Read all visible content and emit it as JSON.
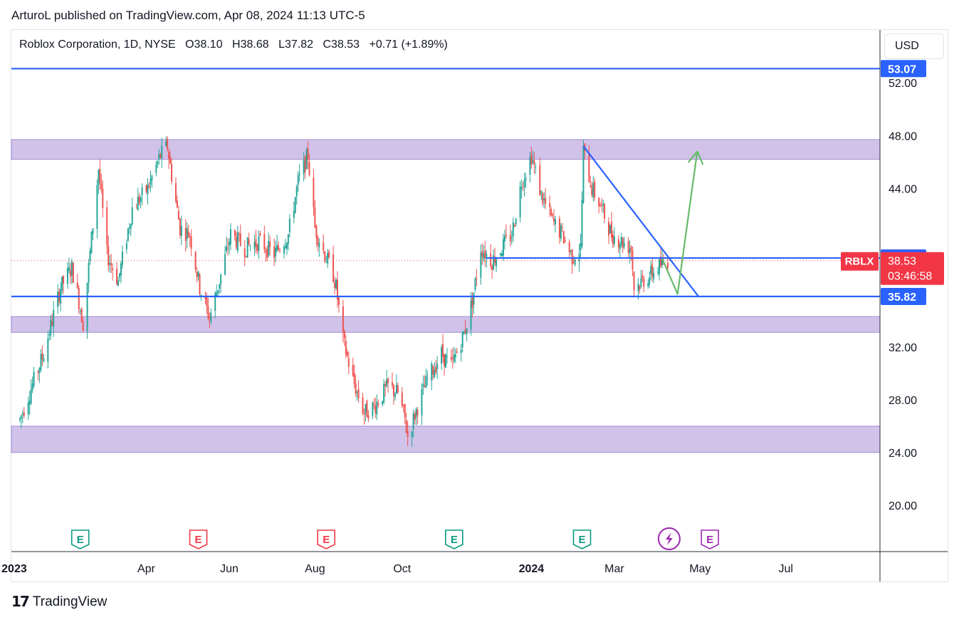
{
  "publisher_line": "ArturoL published on TradingView.com, Apr 08, 2024 11:13 UTC-5",
  "header": {
    "name": "Roblox Corporation, 1D, NYSE",
    "open": "O38.10",
    "high": "H38.68",
    "low": "L37.82",
    "close": "C38.53",
    "change": "+0.71 (+1.89%)"
  },
  "currency_button": "USD",
  "footer_brand": "TradingView",
  "colors": {
    "up": "#26a69a",
    "down": "#ef5350",
    "zone": "#b39ddb",
    "line": "#2962ff",
    "arrow": "#66bb6a",
    "earnings_green": "#089981",
    "earnings_red": "#f23645",
    "earnings_purple": "#9c27b0",
    "badge_blue": "#2962ff",
    "badge_red": "#f23645"
  },
  "chart_data": {
    "type": "candlestick",
    "symbol": "RBLX",
    "y_axis": {
      "min": 16.5,
      "max": 56.0,
      "ticks": [
        "52.00",
        "48.00",
        "44.00",
        "32.00",
        "28.00",
        "24.00",
        "20.00"
      ]
    },
    "x_axis": {
      "ticks": [
        "2023",
        "Apr",
        "Jun",
        "Aug",
        "Oct",
        "2024",
        "Mar",
        "May",
        "Jul"
      ],
      "bold": [
        "2023",
        "2024"
      ]
    },
    "price_badges": [
      {
        "label": "53.07",
        "value": 53.07,
        "style": "blue"
      },
      {
        "label": "38.73",
        "value": 38.73,
        "style": "blue"
      },
      {
        "label": "38.53",
        "value": 38.53,
        "style": "red",
        "sub": "03:46:58",
        "ticker": "RBLX"
      },
      {
        "label": "35.82",
        "value": 35.82,
        "style": "blue"
      }
    ],
    "zones": [
      {
        "from": 46.2,
        "to": 47.7
      },
      {
        "from": 33.1,
        "to": 34.3
      },
      {
        "from": 24.0,
        "to": 26.0
      }
    ],
    "horizontal_lines": [
      {
        "value": 53.07
      },
      {
        "value": 35.82
      },
      {
        "value": 38.73,
        "start_date": "2023-12-01"
      }
    ],
    "trend_line": {
      "from": [
        "2024-02-08",
        47.2
      ],
      "to": [
        "2024-04-30",
        35.8
      ]
    },
    "projection_arrow": [
      [
        "2024-04-04",
        38.7
      ],
      [
        "2024-04-15",
        36.0
      ],
      [
        "2024-04-29",
        46.8
      ]
    ],
    "earnings_markers": [
      {
        "label": "E",
        "date": "2023-02-15",
        "color": "green"
      },
      {
        "label": "E",
        "date": "2023-05-10",
        "color": "red"
      },
      {
        "label": "E",
        "date": "2023-08-09",
        "color": "red"
      },
      {
        "label": "E",
        "date": "2023-11-08",
        "color": "green"
      },
      {
        "label": "E",
        "date": "2024-02-07",
        "color": "green"
      },
      {
        "label": "E",
        "date": "2024-05-08",
        "color": "purple"
      }
    ],
    "dividend_marker": {
      "date": "2024-04-09"
    },
    "price_path": [
      [
        "2023-01-03",
        26.5
      ],
      [
        "2023-01-20",
        31.5
      ],
      [
        "2023-02-01",
        36.5
      ],
      [
        "2023-02-09",
        38.0
      ],
      [
        "2023-02-14",
        35.5
      ],
      [
        "2023-02-17",
        33.8
      ],
      [
        "2023-02-28",
        45.5
      ],
      [
        "2023-03-06",
        39.0
      ],
      [
        "2023-03-14",
        37.0
      ],
      [
        "2023-03-24",
        42.5
      ],
      [
        "2023-04-04",
        44.0
      ],
      [
        "2023-04-13",
        46.5
      ],
      [
        "2023-04-18",
        47.2
      ],
      [
        "2023-04-21",
        45.0
      ],
      [
        "2023-04-27",
        41.0
      ],
      [
        "2023-05-04",
        40.5
      ],
      [
        "2023-05-11",
        36.5
      ],
      [
        "2023-05-18",
        34.2
      ],
      [
        "2023-05-25",
        37.0
      ],
      [
        "2023-06-02",
        40.5
      ],
      [
        "2023-06-12",
        39.5
      ],
      [
        "2023-06-22",
        40.0
      ],
      [
        "2023-07-03",
        39.0
      ],
      [
        "2023-07-13",
        40.5
      ],
      [
        "2023-07-20",
        44.5
      ],
      [
        "2023-07-27",
        46.5
      ],
      [
        "2023-08-01",
        41.0
      ],
      [
        "2023-08-08",
        39.0
      ],
      [
        "2023-08-14",
        37.5
      ],
      [
        "2023-08-16",
        36.5
      ],
      [
        "2023-08-21",
        32.5
      ],
      [
        "2023-08-28",
        29.5
      ],
      [
        "2023-09-05",
        27.0
      ],
      [
        "2023-09-12",
        27.5
      ],
      [
        "2023-09-22",
        29.0
      ],
      [
        "2023-09-29",
        28.5
      ],
      [
        "2023-10-04",
        26.5
      ],
      [
        "2023-10-06",
        25.2
      ],
      [
        "2023-10-13",
        27.5
      ],
      [
        "2023-10-20",
        29.5
      ],
      [
        "2023-10-30",
        31.5
      ],
      [
        "2023-11-06",
        30.5
      ],
      [
        "2023-11-15",
        33.0
      ],
      [
        "2023-11-21",
        35.5
      ],
      [
        "2023-11-27",
        39.5
      ],
      [
        "2023-12-05",
        38.5
      ],
      [
        "2023-12-12",
        39.5
      ],
      [
        "2023-12-19",
        40.5
      ],
      [
        "2023-12-26",
        44.5
      ],
      [
        "2024-01-02",
        46.5
      ],
      [
        "2024-01-09",
        43.5
      ],
      [
        "2024-01-17",
        41.5
      ],
      [
        "2024-01-24",
        40.5
      ],
      [
        "2024-01-31",
        38.8
      ],
      [
        "2024-02-06",
        39.5
      ],
      [
        "2024-02-08",
        46.8
      ],
      [
        "2024-02-14",
        44.0
      ],
      [
        "2024-02-21",
        42.5
      ],
      [
        "2024-02-28",
        40.5
      ],
      [
        "2024-03-06",
        40.0
      ],
      [
        "2024-03-13",
        39.5
      ],
      [
        "2024-03-15",
        36.5
      ],
      [
        "2024-03-21",
        37.0
      ],
      [
        "2024-03-27",
        37.5
      ],
      [
        "2024-04-01",
        38.0
      ],
      [
        "2024-04-08",
        38.53
      ]
    ]
  }
}
